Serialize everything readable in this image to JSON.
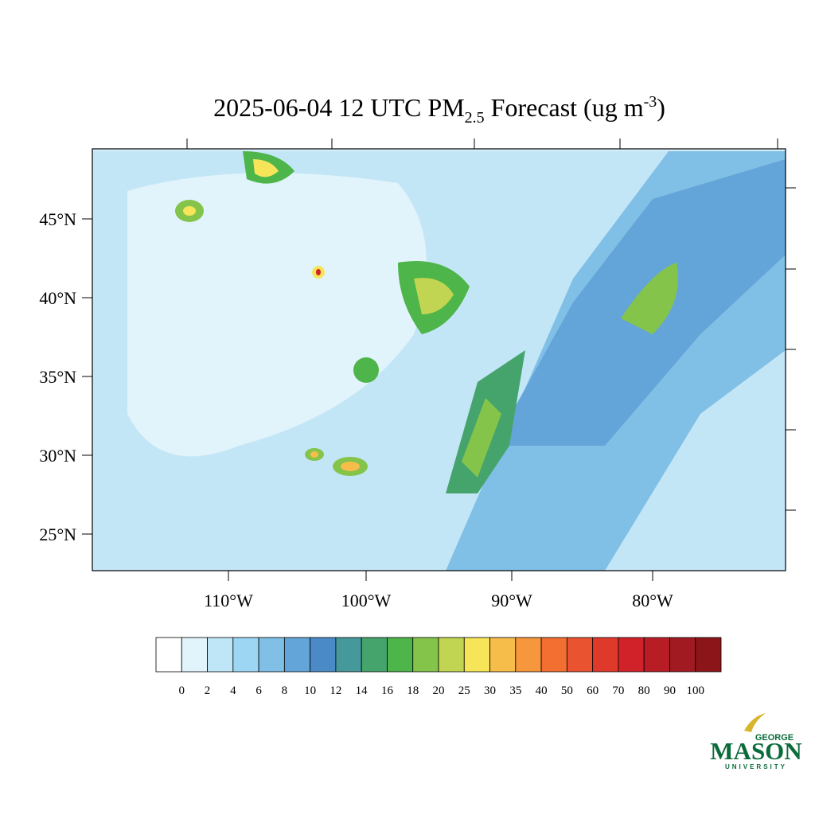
{
  "header": {
    "title": {
      "main": "2025-06-04 12 UTC PM",
      "sub": "2.5",
      "mid": " Forecast (ug m",
      "sup": "-3",
      "end": ")"
    }
  },
  "map": {
    "lat_labels": [
      "45°N",
      "40°N",
      "35°N",
      "30°N",
      "25°N"
    ],
    "lon_labels": [
      "110°W",
      "100°W",
      "90°W",
      "80°W"
    ]
  },
  "colorbar": {
    "levels": [
      0,
      2,
      4,
      6,
      8,
      10,
      12,
      14,
      16,
      18,
      20,
      25,
      30,
      35,
      40,
      50,
      60,
      70,
      80,
      90,
      100
    ],
    "colors": [
      "#ffffff",
      "#e1f3fb",
      "#bfe6f7",
      "#9dd6f2",
      "#80bfe6",
      "#63a5d8",
      "#4a8ac7",
      "#46999b",
      "#45a46c",
      "#4db549",
      "#84c44a",
      "#c2d552",
      "#f6e559",
      "#f7bd4b",
      "#f6973d",
      "#f26f31",
      "#ea5330",
      "#de392b",
      "#d12129",
      "#b81c25",
      "#a11a22",
      "#8c1519"
    ]
  },
  "logo": {
    "top": "GEORGE",
    "name": "MASON",
    "bottom": "UNIVERSITY"
  }
}
